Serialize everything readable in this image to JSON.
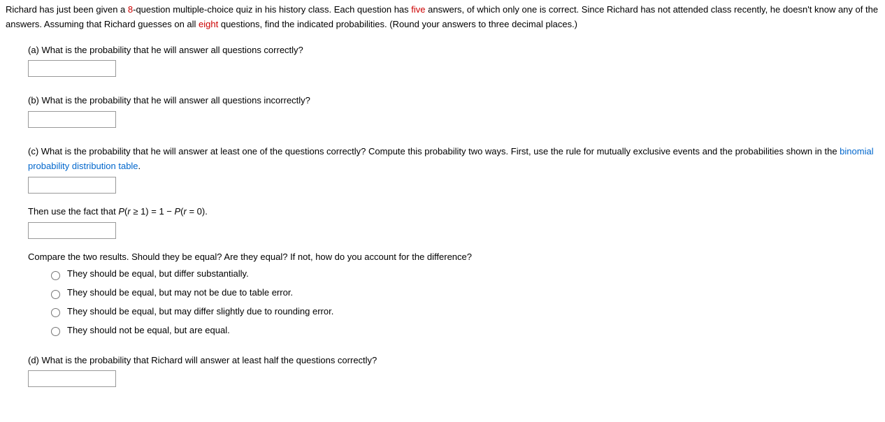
{
  "intro": {
    "part1": "Richard has just been given a ",
    "num_questions": "8",
    "part2": "-question multiple-choice quiz in his history class. Each question has ",
    "num_answers": "five",
    "part3": " answers, of which only one is correct. Since Richard has not attended class recently, he doesn't know any of the answers. Assuming that Richard guesses on all ",
    "num_guess": "eight",
    "part4": " questions, find the indicated probabilities. (Round your answers to three decimal places.)"
  },
  "parts": {
    "a": {
      "label": "(a) What is the probability that he will answer all questions correctly?"
    },
    "b": {
      "label": "(b) What is the probability that he will answer all questions incorrectly?"
    },
    "c": {
      "label_part1": "(c) What is the probability that he will answer at least one of the questions correctly? Compute this probability two ways. First, use the rule for mutually exclusive events and the probabilities shown in the ",
      "link_text": "binomial probability distribution table",
      "label_part2": ".",
      "sub2_part1": "Then use the fact that ",
      "sub2_formula_p": "P",
      "sub2_formula_part1": "(",
      "sub2_formula_r": "r",
      "sub2_formula_part2": " ≥ 1) = 1 − ",
      "sub2_formula_p2": "P",
      "sub2_formula_part3": "(",
      "sub2_formula_r2": "r",
      "sub2_formula_part4": " = 0).",
      "compare_text": "Compare the two results. Should they be equal? Are they equal? If not, how do you account for the difference?",
      "options": [
        "They should be equal, but differ substantially.",
        "They should be equal, but may not be due to table error.",
        "They should be equal, but may differ slightly due to rounding error.",
        "They should not be equal, but are equal."
      ]
    },
    "d": {
      "label": "(d) What is the probability that Richard will answer at least half the questions correctly?"
    }
  }
}
